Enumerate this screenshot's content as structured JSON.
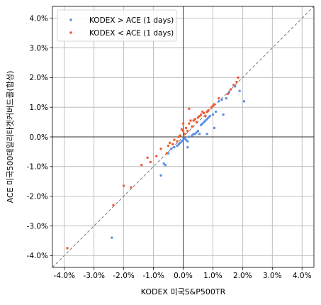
{
  "chart_data": {
    "type": "scatter",
    "title": "",
    "xlabel": "KODEX 미국S&P500TR",
    "ylabel": "ACE 미국500데일리타겟커버드콜(합성)",
    "xlim": [
      -4.4,
      4.4
    ],
    "ylim": [
      -4.4,
      4.4
    ],
    "x_ticks": [
      "-4.0%",
      "-3.0%",
      "-2.0%",
      "-1.0%",
      "0.0%",
      "1.0%",
      "2.0%",
      "3.0%",
      "4.0%"
    ],
    "y_ticks": [
      "-4.0%",
      "-3.0%",
      "-2.0%",
      "-1.0%",
      "0.0%",
      "1.0%",
      "2.0%",
      "3.0%",
      "4.0%"
    ],
    "tick_values": [
      -4,
      -3,
      -2,
      -1,
      0,
      1,
      2,
      3,
      4
    ],
    "grid": true,
    "diagonal_reference_line": true,
    "zero_lines": true,
    "legend_position": "top-left",
    "series": [
      {
        "name": "KODEX > ACE (1 days)",
        "color": "#5b8ee6",
        "points": [
          [
            -2.4,
            -3.4
          ],
          [
            -0.75,
            -1.3
          ],
          [
            -0.65,
            -0.9
          ],
          [
            -0.6,
            -0.95
          ],
          [
            -0.5,
            -0.55
          ],
          [
            -0.4,
            -0.4
          ],
          [
            -0.3,
            -0.35
          ],
          [
            -0.2,
            -0.3
          ],
          [
            -0.15,
            -0.25
          ],
          [
            -0.1,
            -0.2
          ],
          [
            -0.05,
            -0.15
          ],
          [
            0.0,
            -0.1
          ],
          [
            0.05,
            -0.05
          ],
          [
            0.1,
            -0.1
          ],
          [
            0.15,
            -0.15
          ],
          [
            0.2,
            0.0
          ],
          [
            0.3,
            0.05
          ],
          [
            0.35,
            0.1
          ],
          [
            0.45,
            0.15
          ],
          [
            0.5,
            0.2
          ],
          [
            0.55,
            0.1
          ],
          [
            0.6,
            0.4
          ],
          [
            0.65,
            0.45
          ],
          [
            0.7,
            0.5
          ],
          [
            0.75,
            0.55
          ],
          [
            0.8,
            0.6
          ],
          [
            0.85,
            0.65
          ],
          [
            0.9,
            0.7
          ],
          [
            1.0,
            0.75
          ],
          [
            1.05,
            0.3
          ],
          [
            1.1,
            0.85
          ],
          [
            1.2,
            1.2
          ],
          [
            1.3,
            1.25
          ],
          [
            1.35,
            0.75
          ],
          [
            1.45,
            1.3
          ],
          [
            1.55,
            1.5
          ],
          [
            1.75,
            1.7
          ],
          [
            1.9,
            1.55
          ],
          [
            2.05,
            1.2
          ],
          [
            0.15,
            -0.35
          ],
          [
            0.4,
            0.1
          ],
          [
            0.8,
            0.1
          ]
        ]
      },
      {
        "name": "KODEX < ACE (1 days)",
        "color": "#f25a33",
        "points": [
          [
            -3.9,
            -3.75
          ],
          [
            -2.35,
            -2.3
          ],
          [
            -2.0,
            -1.65
          ],
          [
            -1.75,
            -1.7
          ],
          [
            -1.4,
            -0.95
          ],
          [
            -1.2,
            -0.7
          ],
          [
            -1.1,
            -0.85
          ],
          [
            -0.9,
            -0.65
          ],
          [
            -0.75,
            -0.4
          ],
          [
            -0.55,
            -0.55
          ],
          [
            -0.5,
            -0.3
          ],
          [
            -0.45,
            -0.2
          ],
          [
            -0.35,
            -0.25
          ],
          [
            -0.3,
            -0.1
          ],
          [
            -0.2,
            -0.15
          ],
          [
            -0.15,
            0.0
          ],
          [
            -0.1,
            0.05
          ],
          [
            -0.05,
            0.25
          ],
          [
            0.0,
            0.2
          ],
          [
            0.05,
            0.1
          ],
          [
            0.1,
            0.3
          ],
          [
            0.15,
            0.2
          ],
          [
            0.2,
            0.45
          ],
          [
            0.25,
            0.55
          ],
          [
            0.3,
            0.35
          ],
          [
            0.35,
            0.55
          ],
          [
            0.4,
            0.6
          ],
          [
            0.45,
            0.5
          ],
          [
            0.5,
            0.65
          ],
          [
            0.55,
            0.7
          ],
          [
            0.6,
            0.75
          ],
          [
            0.65,
            0.85
          ],
          [
            0.7,
            0.8
          ],
          [
            0.75,
            0.7
          ],
          [
            0.8,
            0.85
          ],
          [
            0.85,
            0.9
          ],
          [
            0.95,
            1.0
          ],
          [
            1.0,
            1.05
          ],
          [
            1.05,
            1.1
          ],
          [
            1.2,
            1.3
          ],
          [
            1.5,
            1.45
          ],
          [
            1.6,
            1.6
          ],
          [
            1.7,
            1.75
          ],
          [
            1.8,
            1.85
          ],
          [
            1.85,
            2.0
          ],
          [
            0.2,
            0.95
          ],
          [
            0.0,
            0.45
          ]
        ]
      }
    ]
  }
}
